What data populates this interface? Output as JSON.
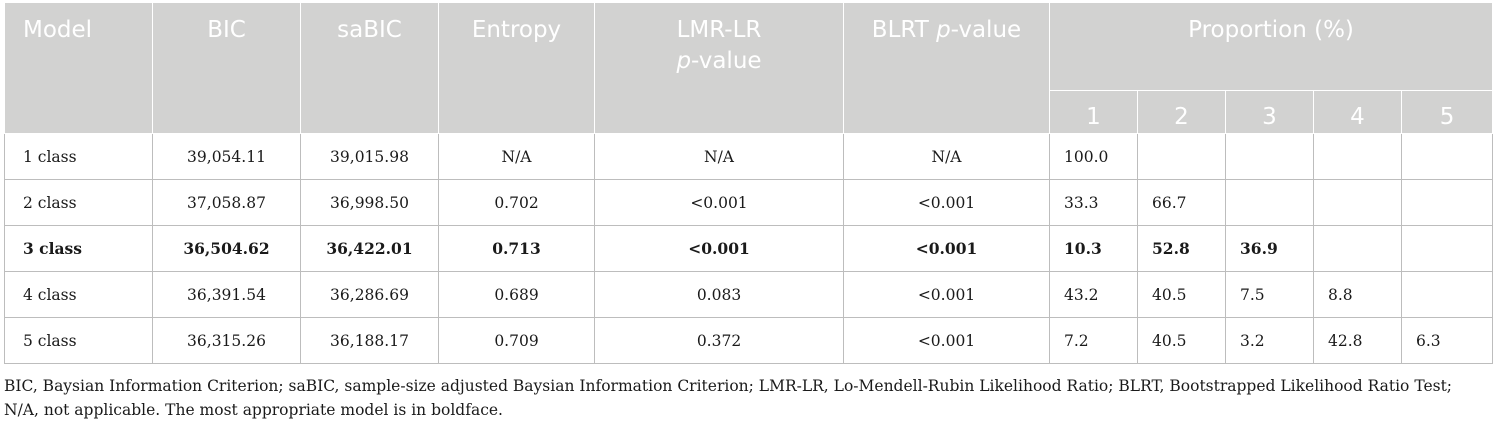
{
  "header": {
    "model": "Model",
    "bic": "BIC",
    "sabic": "saBIC",
    "entropy": "Entropy",
    "lmr_line1": "LMR-LR",
    "lmr_p": "p",
    "lmr_value": "-value",
    "blrt_prefix": "BLRT ",
    "blrt_p": "p",
    "blrt_value": "-value",
    "proportion": "Proportion (%)",
    "proportion_classes": [
      "1",
      "2",
      "3",
      "4",
      "5"
    ]
  },
  "rows": [
    {
      "model": "1 class",
      "bic": "39,054.11",
      "sabic": "39,015.98",
      "entropy": "N/A",
      "lmr": "N/A",
      "blrt": "N/A",
      "p": [
        "100.0",
        "",
        "",
        "",
        ""
      ],
      "bold": false
    },
    {
      "model": "2 class",
      "bic": "37,058.87",
      "sabic": "36,998.50",
      "entropy": "0.702",
      "lmr": "<0.001",
      "blrt": "<0.001",
      "p": [
        "33.3",
        "66.7",
        "",
        "",
        ""
      ],
      "bold": false
    },
    {
      "model": "3 class",
      "bic": "36,504.62",
      "sabic": "36,422.01",
      "entropy": "0.713",
      "lmr": "<0.001",
      "blrt": "<0.001",
      "p": [
        "10.3",
        "52.8",
        "36.9",
        "",
        ""
      ],
      "bold": true
    },
    {
      "model": "4 class",
      "bic": "36,391.54",
      "sabic": "36,286.69",
      "entropy": "0.689",
      "lmr": "0.083",
      "blrt": "<0.001",
      "p": [
        "43.2",
        "40.5",
        "7.5",
        "8.8",
        ""
      ],
      "bold": false
    },
    {
      "model": "5 class",
      "bic": "36,315.26",
      "sabic": "36,188.17",
      "entropy": "0.709",
      "lmr": "0.372",
      "blrt": "<0.001",
      "p": [
        "7.2",
        "40.5",
        "3.2",
        "42.8",
        "6.3"
      ],
      "bold": false
    }
  ],
  "footnote": "BIC, Baysian Information Criterion; saBIC, sample-size adjusted Baysian Information Criterion; LMR-LR, Lo-Mendell-Rubin Likelihood Ratio; BLRT, Bootstrapped Likelihood Ratio Test; N/A, not applicable. The most appropriate model is in boldface."
}
